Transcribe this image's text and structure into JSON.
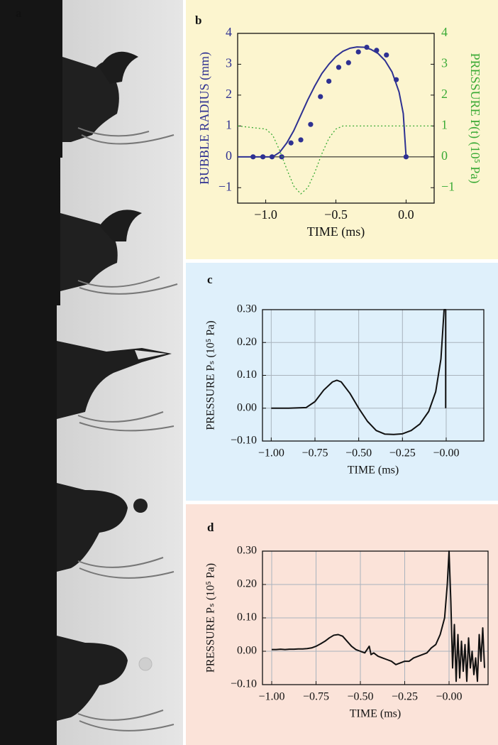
{
  "panel_a": {
    "label": "a"
  },
  "chart_data": [
    {
      "panel_label": "b",
      "type": "line",
      "background": "#fcf5cf",
      "xlabel": "TIME (ms)",
      "ylabel": "BUBBLE RADIUS (mm)",
      "y2label": "PRESSURE P(t) (10⁵ Pa)",
      "xlim": [
        -1.2,
        0.2
      ],
      "ylim": [
        -1.5,
        4
      ],
      "y2lim": [
        -1.5,
        4
      ],
      "xticks": [
        {
          "value": -1,
          "label": "−1.0"
        },
        {
          "value": -0.5,
          "label": "−0.5"
        },
        {
          "value": 0,
          "label": "0.0"
        }
      ],
      "yticks": [
        {
          "value": -1,
          "label": "−1"
        },
        0,
        1,
        2,
        3,
        4
      ],
      "y2ticks": [
        {
          "value": -1,
          "label": "−1"
        },
        0,
        1,
        2,
        3,
        4
      ],
      "hlines": [
        0
      ],
      "grid": false,
      "series": [
        {
          "style": "markers",
          "color": "#2e3192",
          "x": [
            -1.09,
            -1.02,
            -0.955,
            -0.886,
            -0.82,
            -0.75,
            -0.68,
            -0.61,
            -0.55,
            -0.48,
            -0.41,
            -0.34,
            -0.28,
            -0.21,
            -0.14,
            -0.07,
            0
          ],
          "values": [
            0,
            0,
            0,
            0,
            0.45,
            0.55,
            1.05,
            1.95,
            2.45,
            2.9,
            3.05,
            3.4,
            3.55,
            3.45,
            3.3,
            2.5,
            0
          ]
        },
        {
          "style": "solid",
          "color": "#2e3192",
          "x": [
            -1.2,
            -0.95,
            -0.9,
            -0.85,
            -0.8,
            -0.75,
            -0.7,
            -0.65,
            -0.6,
            -0.55,
            -0.5,
            -0.45,
            -0.4,
            -0.35,
            -0.3,
            -0.25,
            -0.2,
            -0.15,
            -0.1,
            -0.05,
            -0.02,
            0
          ],
          "values": [
            0,
            0,
            0.15,
            0.45,
            0.85,
            1.35,
            1.85,
            2.3,
            2.7,
            3.0,
            3.25,
            3.42,
            3.52,
            3.56,
            3.55,
            3.48,
            3.35,
            3.12,
            2.75,
            2.1,
            1.4,
            0
          ]
        },
        {
          "style": "dotted",
          "color": "#3aaa35",
          "axis": "y2",
          "x": [
            -1.2,
            -1.0,
            -0.95,
            -0.9,
            -0.85,
            -0.8,
            -0.75,
            -0.7,
            -0.65,
            -0.6,
            -0.55,
            -0.5,
            -0.45,
            0.2
          ],
          "values": [
            1,
            0.9,
            0.7,
            0.2,
            -0.4,
            -0.95,
            -1.2,
            -1.0,
            -0.5,
            0.1,
            0.6,
            0.9,
            1,
            1
          ]
        }
      ]
    },
    {
      "panel_label": "c",
      "type": "line",
      "background": "#dff0fb",
      "xlabel": "TIME (ms)",
      "ylabel": "PRESSURE Pₛ (10⁵ Pa)",
      "xlim": [
        -1.05,
        0.215
      ],
      "ylim": [
        -0.1,
        0.3
      ],
      "xticks": [
        {
          "value": -1,
          "label": "−1.00"
        },
        {
          "value": -0.75,
          "label": "−0.75"
        },
        {
          "value": -0.5,
          "label": "−0.50"
        },
        {
          "value": -0.25,
          "label": "−0.25"
        },
        {
          "value": 0,
          "label": "−0.00"
        }
      ],
      "yticks": [
        {
          "value": -0.1,
          "label": "−0.10"
        },
        {
          "value": 0,
          "label": "0.00"
        },
        {
          "value": 0.1,
          "label": "0.10"
        },
        {
          "value": 0.2,
          "label": "0.20"
        },
        {
          "value": 0.3,
          "label": "0.30"
        }
      ],
      "grid": true,
      "series": [
        {
          "style": "solid",
          "color": "#111111",
          "x": [
            -1.0,
            -0.9,
            -0.8,
            -0.75,
            -0.7,
            -0.65,
            -0.625,
            -0.6,
            -0.55,
            -0.5,
            -0.45,
            -0.4,
            -0.35,
            -0.3,
            -0.25,
            -0.2,
            -0.15,
            -0.1,
            -0.06,
            -0.03,
            -0.012,
            -0.003,
            -0.003
          ],
          "values": [
            0,
            0,
            0.002,
            0.02,
            0.055,
            0.08,
            0.085,
            0.08,
            0.045,
            0.0,
            -0.04,
            -0.068,
            -0.079,
            -0.08,
            -0.078,
            -0.068,
            -0.048,
            -0.01,
            0.05,
            0.15,
            0.3,
            0.3,
            0.0
          ]
        }
      ]
    },
    {
      "panel_label": "d",
      "type": "line",
      "background": "#fbe3d9",
      "xlabel": "TIME (ms)",
      "ylabel": "PRESSURE Pₛ (10⁵ Pa)",
      "xlim": [
        -1.052,
        0.22
      ],
      "ylim": [
        -0.1,
        0.3
      ],
      "xticks": [
        {
          "value": -1,
          "label": "−1.00"
        },
        {
          "value": -0.75,
          "label": "−0.75"
        },
        {
          "value": -0.5,
          "label": "−0.50"
        },
        {
          "value": -0.25,
          "label": "−0.25"
        },
        {
          "value": 0,
          "label": "−0.00"
        }
      ],
      "yticks": [
        {
          "value": -0.1,
          "label": "−0.10"
        },
        {
          "value": 0,
          "label": "0.00"
        },
        {
          "value": 0.1,
          "label": "0.10"
        },
        {
          "value": 0.2,
          "label": "0.20"
        },
        {
          "value": 0.3,
          "label": "0.30"
        }
      ],
      "grid": true,
      "series": [
        {
          "style": "solid",
          "color": "#111111",
          "x": [
            -1.0,
            -0.975,
            -0.95,
            -0.925,
            -0.9,
            -0.875,
            -0.85,
            -0.825,
            -0.8,
            -0.775,
            -0.75,
            -0.725,
            -0.7,
            -0.675,
            -0.65,
            -0.625,
            -0.6,
            -0.575,
            -0.55,
            -0.525,
            -0.5,
            -0.475,
            -0.45,
            -0.44,
            -0.425,
            -0.4,
            -0.375,
            -0.35,
            -0.325,
            -0.3,
            -0.275,
            -0.25,
            -0.225,
            -0.2,
            -0.175,
            -0.15,
            -0.125,
            -0.1,
            -0.075,
            -0.05,
            -0.025,
            -0.01,
            0.0,
            0.01,
            0.02,
            0.03,
            0.04,
            0.05,
            0.06,
            0.07,
            0.08,
            0.09,
            0.1,
            0.11,
            0.12,
            0.13,
            0.14,
            0.15,
            0.16,
            0.17,
            0.18,
            0.19,
            0.2
          ],
          "values": [
            0.005,
            0.005,
            0.006,
            0.005,
            0.006,
            0.006,
            0.007,
            0.007,
            0.008,
            0.01,
            0.015,
            0.022,
            0.03,
            0.04,
            0.048,
            0.05,
            0.045,
            0.03,
            0.015,
            0.005,
            0.0,
            -0.005,
            0.015,
            -0.01,
            -0.005,
            -0.015,
            -0.02,
            -0.025,
            -0.03,
            -0.04,
            -0.035,
            -0.03,
            -0.03,
            -0.02,
            -0.015,
            -0.01,
            -0.005,
            0.01,
            0.02,
            0.05,
            0.1,
            0.2,
            0.3,
            0.15,
            -0.05,
            0.08,
            -0.09,
            0.05,
            -0.08,
            0.03,
            -0.06,
            0.02,
            -0.09,
            0.04,
            -0.05,
            0.0,
            -0.07,
            -0.02,
            -0.09,
            0.05,
            -0.03,
            0.07,
            -0.05
          ]
        }
      ]
    }
  ]
}
